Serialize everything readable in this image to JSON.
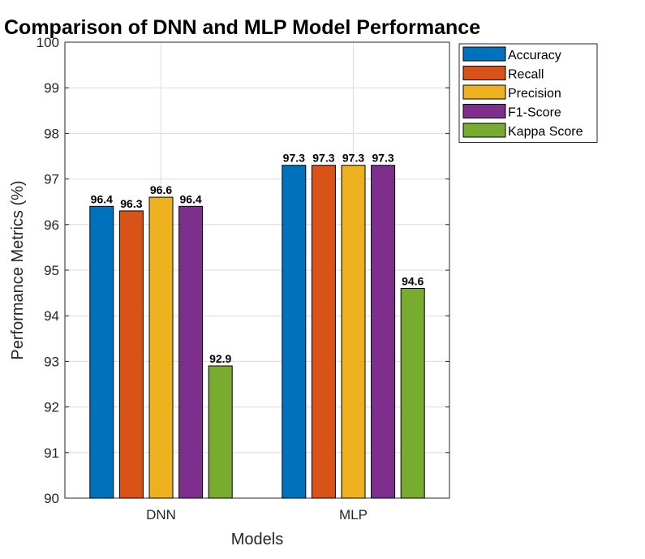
{
  "chart_data": {
    "type": "bar",
    "title": "Comparison of DNN and MLP Model Performance",
    "xlabel": "Models",
    "ylabel": "Performance Metrics (%)",
    "categories": [
      "DNN",
      "MLP"
    ],
    "ylim": [
      90,
      100
    ],
    "yticks": [
      90,
      91,
      92,
      93,
      94,
      95,
      96,
      97,
      98,
      99,
      100
    ],
    "grid": true,
    "legend_position": "outside-top-right",
    "series": [
      {
        "name": "Accuracy",
        "color": "#0072BD",
        "values": [
          96.4,
          97.3
        ],
        "labels": [
          "96.4",
          "97.3"
        ]
      },
      {
        "name": "Recall",
        "color": "#D95319",
        "values": [
          96.3,
          97.3
        ],
        "labels": [
          "96.3",
          "97.3"
        ]
      },
      {
        "name": "Precision",
        "color": "#EDB120",
        "values": [
          96.6,
          97.3
        ],
        "labels": [
          "96.6",
          "97.3"
        ]
      },
      {
        "name": "F1-Score",
        "color": "#7E2F8E",
        "values": [
          96.4,
          97.3
        ],
        "labels": [
          "96.4",
          "97.3"
        ]
      },
      {
        "name": "Kappa Score",
        "color": "#77AC30",
        "values": [
          92.9,
          94.6
        ],
        "labels": [
          "92.9",
          "94.6"
        ]
      }
    ]
  }
}
